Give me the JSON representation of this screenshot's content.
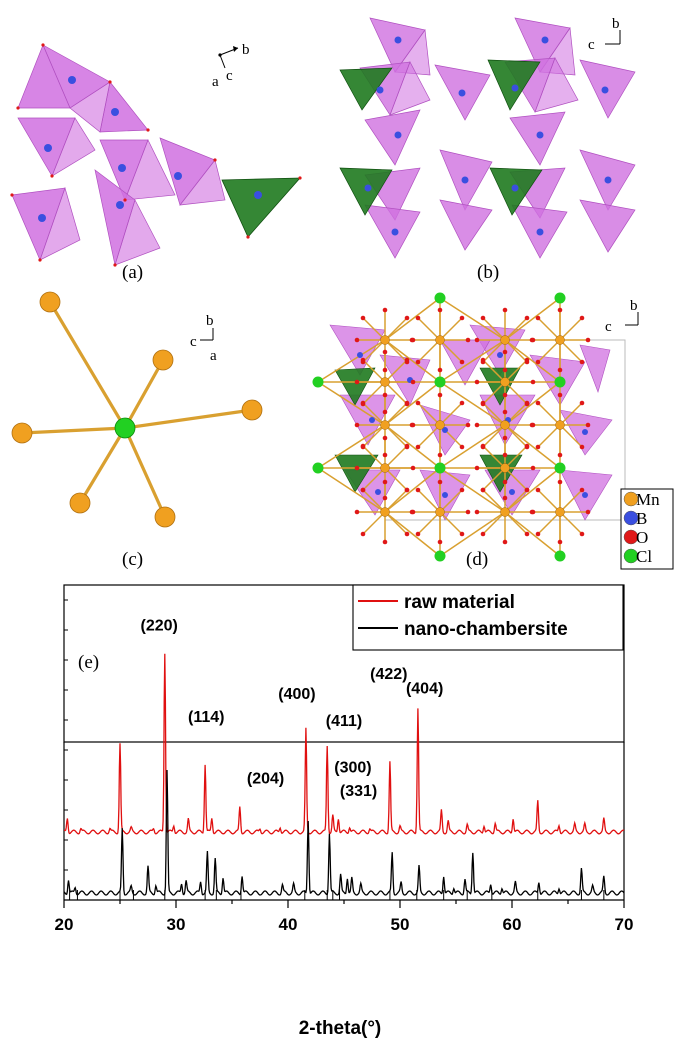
{
  "panels": {
    "a": {
      "label": "(a)",
      "axes": [
        "b",
        "c",
        "a"
      ]
    },
    "b": {
      "label": "(b)",
      "axes": [
        "b",
        "c"
      ]
    },
    "c": {
      "label": "(c)",
      "axes": [
        "b",
        "c",
        "a"
      ]
    },
    "d": {
      "label": "(d)",
      "axes": [
        "b",
        "c"
      ]
    }
  },
  "legend_atoms": [
    {
      "symbol": "Mn",
      "color": "#f0a020"
    },
    {
      "symbol": "B",
      "color": "#3a4fe0"
    },
    {
      "symbol": "O",
      "color": "#e01818"
    },
    {
      "symbol": "Cl",
      "color": "#22d022"
    }
  ],
  "colors": {
    "polyhedron": "#d070e0",
    "tetra_green": "#1f7a1f",
    "bond": "#d9a030",
    "raw": "#e01010",
    "nano": "#000000"
  },
  "chart_data": {
    "type": "line",
    "panel_label": "(e)",
    "xlabel": "2-theta(°)",
    "ylabel": "",
    "xlim": [
      20,
      70
    ],
    "xticks": [
      20,
      30,
      40,
      50,
      60,
      70
    ],
    "legend_position": "top-right",
    "series": [
      {
        "name": "raw material",
        "color": "#e01010",
        "peaks": [
          [
            20.3,
            0.08
          ],
          [
            21.5,
            0.02
          ],
          [
            24.1,
            0.02
          ],
          [
            25.0,
            0.49
          ],
          [
            26.0,
            0.02
          ],
          [
            28.0,
            0.02
          ],
          [
            29.0,
            1.0
          ],
          [
            29.8,
            0.04
          ],
          [
            31.1,
            0.07
          ],
          [
            32.6,
            0.38
          ],
          [
            33.2,
            0.08
          ],
          [
            35.7,
            0.14
          ],
          [
            37.5,
            0.02
          ],
          [
            39.3,
            0.03
          ],
          [
            41.6,
            0.57
          ],
          [
            43.5,
            0.48
          ],
          [
            44.0,
            0.09
          ],
          [
            44.5,
            0.08
          ],
          [
            45.5,
            0.03
          ],
          [
            47.3,
            0.02
          ],
          [
            49.1,
            0.39
          ],
          [
            50.0,
            0.03
          ],
          [
            51.6,
            0.69
          ],
          [
            53.7,
            0.12
          ],
          [
            54.3,
            0.06
          ],
          [
            56.0,
            0.04
          ],
          [
            57.5,
            0.04
          ],
          [
            58.5,
            0.05
          ],
          [
            60.1,
            0.08
          ],
          [
            62.3,
            0.17
          ],
          [
            64.2,
            0.04
          ],
          [
            65.6,
            0.04
          ],
          [
            66.5,
            0.04
          ],
          [
            68.2,
            0.07
          ]
        ]
      },
      {
        "name": "nano-chambersite",
        "color": "#000000",
        "peaks": [
          [
            20.4,
            0.07
          ],
          [
            21.0,
            0.03
          ],
          [
            25.2,
            0.32
          ],
          [
            26.0,
            0.03
          ],
          [
            27.5,
            0.13
          ],
          [
            28.2,
            0.04
          ],
          [
            29.2,
            0.61
          ],
          [
            30.5,
            0.05
          ],
          [
            30.9,
            0.06
          ],
          [
            32.2,
            0.06
          ],
          [
            32.8,
            0.2
          ],
          [
            33.5,
            0.17
          ],
          [
            34.2,
            0.08
          ],
          [
            35.9,
            0.09
          ],
          [
            39.5,
            0.04
          ],
          [
            40.5,
            0.04
          ],
          [
            41.8,
            0.37
          ],
          [
            43.7,
            0.3
          ],
          [
            44.7,
            0.09
          ],
          [
            45.3,
            0.08
          ],
          [
            45.7,
            0.07
          ],
          [
            46.5,
            0.04
          ],
          [
            49.3,
            0.2
          ],
          [
            50.1,
            0.05
          ],
          [
            51.7,
            0.13
          ],
          [
            53.9,
            0.09
          ],
          [
            54.8,
            0.03
          ],
          [
            55.8,
            0.07
          ],
          [
            56.5,
            0.21
          ],
          [
            58.1,
            0.05
          ],
          [
            59.1,
            0.03
          ],
          [
            60.3,
            0.05
          ],
          [
            62.4,
            0.06
          ],
          [
            64.2,
            0.03
          ],
          [
            66.2,
            0.12
          ],
          [
            67.2,
            0.03
          ],
          [
            68.2,
            0.08
          ]
        ]
      }
    ],
    "reference_ticks": [
      20.5,
      21.2,
      25.0,
      26.2,
      29.0,
      32.6,
      33.6,
      35.8,
      41.5,
      43.5,
      44.0,
      44.6,
      49.1,
      51.5,
      53.9,
      56.0,
      58.2,
      62.3,
      66.2,
      68.2
    ],
    "annotations": [
      {
        "text": "(220)",
        "x": 28.5,
        "level": 1.12
      },
      {
        "text": "(114)",
        "x": 32.7,
        "level": 0.61
      },
      {
        "text": "(204)",
        "x": 38.0,
        "level": 0.27
      },
      {
        "text": "(400)",
        "x": 40.8,
        "level": 0.74
      },
      {
        "text": "(411)",
        "x": 45.0,
        "level": 0.59
      },
      {
        "text": "(300)",
        "x": 45.8,
        "level": 0.33
      },
      {
        "text": "(331)",
        "x": 46.3,
        "level": 0.2
      },
      {
        "text": "(422)",
        "x": 49.0,
        "level": 0.85
      },
      {
        "text": "(404)",
        "x": 52.2,
        "level": 0.77
      }
    ]
  }
}
